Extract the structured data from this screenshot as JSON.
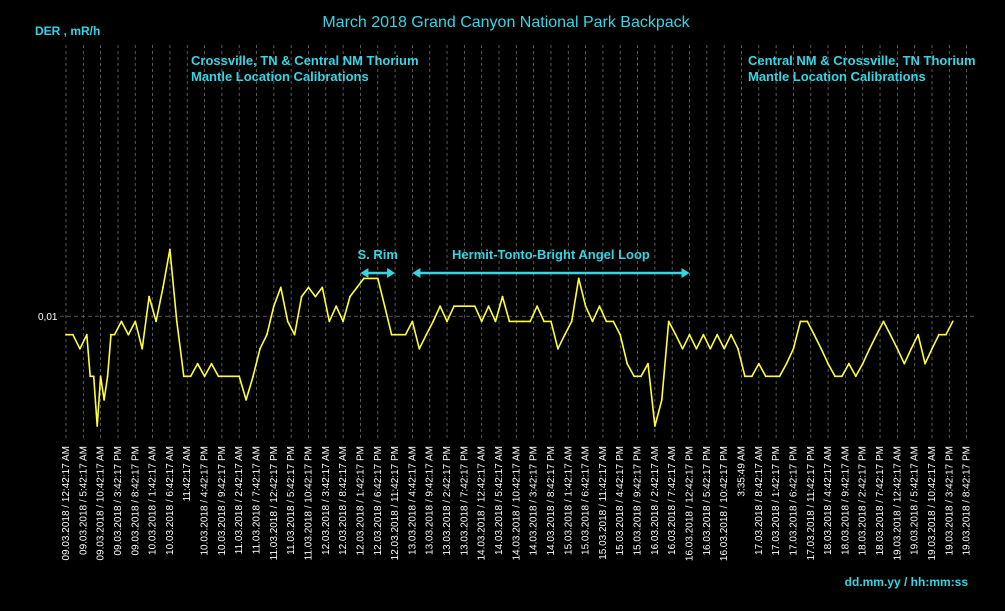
{
  "chart_data": {
    "type": "line",
    "title": "March 2018 Grand Canyon National Park Backpack",
    "ylabel": "DER , mR/h",
    "xlabel": "dd.mm.yy / hh:mm:ss",
    "y_scale": "log",
    "y_tick_labels": [
      {
        "value": 0.01,
        "label": "0,01"
      }
    ],
    "ylim": [
      0.0062,
      0.029
    ],
    "grid": "vertical dashed gridlines at each x tick; horizontal dashed line at 0,01",
    "colors": {
      "background": "#000000",
      "line": "#FFFF33",
      "text": "#33D6E6",
      "ticks": "#FFFFFF",
      "grid": "#6E6E6E"
    },
    "x_tick_labels": [
      "09.03.2018 / 12:42:17 AM",
      "09.03.2018 / 5:42:17 AM",
      "09.03.2018 / 10:42:17 AM",
      "09.03.2018 / 3:42:17 PM",
      "09.03.2018 / 8:42:17 PM",
      "10.03.2018 / 1:42:17 AM",
      "10.03.2018 / 6:42:17 AM",
      "11:42:17 AM",
      "10.03.2018 / 4:42:17 PM",
      "10.03.2018 / 9:42:17 PM",
      "11.03.2018 / 2:42:17 AM",
      "11.03.2018 / 7:42:17 AM",
      "11.03.2018 / 12:42:17 PM",
      "11.03.2018 / 5:42:17 PM",
      "11.03.2018 / 10:42:17 PM",
      "12.03.2018 / 3:42:17 AM",
      "12.03.2018 / 8:42:17 AM",
      "12.03.2018 / 1:42:17 PM",
      "12.03.2018 / 6:42:17 PM",
      "12.03.2018 / 11:42:17 PM",
      "13.03.2018 / 4:42:17 AM",
      "13.03.2018 / 9:42:17 AM",
      "13.03.2018 / 2:42:17 PM",
      "13.03.2018 / 7:42:17 PM",
      "14.03.2018 / 12:42:17 AM",
      "14.03.2018 / 5:42:17 AM",
      "14.03.2018 / 10:42:17 AM",
      "14.03.2018 / 3:42:17 PM",
      "14.03.2018 / 8:42:17 PM",
      "15.03.2018 / 1:42:17 AM",
      "15.03.2018 / 6:42:17 AM",
      "15.03.2018 / 11:42:17 AM",
      "15.03.2018 / 4:42:17 PM",
      "15.03.2018 / 9:42:17 PM",
      "16.03.2018 / 2:42:17 AM",
      "16.03.2018 / 7:42:17 AM",
      "16.03.2018 / 12:42:17 PM",
      "16.03.2018 / 5:42:17 PM",
      "16.03.2018 / 10:42:17 PM",
      "3:35:49 AM",
      "17.03.2018 / 8:42:17 AM",
      "17.03.2018 / 1:42:17 PM",
      "17.03.2018 / 6:42:17 PM",
      "17.03.2018 / 11:42:17 PM",
      "18.03.2018 / 4:42:17 AM",
      "18.03.2018 / 9:42:17 AM",
      "18.03.2018 / 2:42:17 PM",
      "18.03.2018 / 7:42:17 PM",
      "19.03.2018 / 12:42:17 AM",
      "19.03.2018 / 5:42:17 AM",
      "19.03.2018 / 10:42:17 AM",
      "19.03.2018 / 3:42:17 PM",
      "19.03.2018 / 8:42:17 PM"
    ],
    "annotations": [
      {
        "lines": [
          "Crossville, TN & Central NM Thorium",
          "Mantle Location Calibrations"
        ],
        "anchor": "upper-left"
      },
      {
        "lines": [
          "Central NM & Crossville, TN Thorium",
          "Mantle Location Calibrations"
        ],
        "anchor": "upper-right"
      },
      {
        "label": "S. Rim",
        "span": [
          "12.03.2018 / 1:42:17 PM",
          "12.03.2018 / 11:42:17 PM"
        ]
      },
      {
        "label": "Hermit-Tonto-Bright Angel Loop",
        "span": [
          "13.03.2018 / 4:42:17 AM",
          "16.03.2018 / 12:42:17 PM"
        ]
      }
    ],
    "series": [
      {
        "note": "values in mR/h; x in hours after 09.03.2018 / 12:42:17 AM",
        "x": [
          0,
          2,
          4,
          6,
          7,
          8,
          9,
          10,
          11,
          12,
          13,
          14,
          16,
          18,
          20,
          22,
          24,
          26,
          28,
          30,
          32,
          34,
          36,
          38,
          40,
          42,
          44,
          45,
          46,
          47,
          48,
          50,
          52,
          54,
          56,
          58,
          60,
          62,
          64,
          66,
          68,
          70,
          72,
          74,
          76,
          78,
          80,
          82,
          84,
          86,
          88,
          90,
          92,
          94,
          96,
          98,
          100,
          102,
          104,
          106,
          108,
          110,
          112,
          114,
          116,
          118,
          120,
          122,
          124,
          126,
          128,
          130,
          132,
          134,
          136,
          138,
          140,
          142,
          144,
          146,
          148,
          150,
          152,
          154,
          156,
          158,
          160,
          162,
          164,
          166,
          168,
          170,
          172,
          174,
          176,
          178,
          180,
          182,
          184,
          186,
          188,
          190,
          192,
          194,
          196,
          198,
          200,
          202,
          204,
          206,
          208,
          210,
          212,
          214,
          216,
          218,
          220,
          222,
          224,
          226,
          228,
          230,
          232,
          234,
          236,
          238,
          240,
          242,
          244,
          246,
          248,
          250,
          252,
          254,
          256
        ],
        "y": [
          0.0093,
          0.0093,
          0.0088,
          0.0093,
          0.0079,
          0.0079,
          0.0065,
          0.0079,
          0.0072,
          0.0079,
          0.0093,
          0.0093,
          0.0098,
          0.0093,
          0.0098,
          0.0088,
          0.0108,
          0.0098,
          0.0112,
          0.013,
          0.0098,
          0.0079,
          0.0079,
          0.0083,
          0.0079,
          0.0083,
          0.0079,
          0.0079,
          0.0079,
          0.0079,
          0.0079,
          0.0079,
          0.0072,
          0.0079,
          0.0088,
          0.0093,
          0.0104,
          0.0112,
          0.0098,
          0.0093,
          0.0108,
          0.0112,
          0.0108,
          0.0112,
          0.0098,
          0.0104,
          0.0098,
          0.0108,
          0.0112,
          0.0116,
          0.0116,
          0.0116,
          0.0104,
          0.0093,
          0.0093,
          0.0093,
          0.0098,
          0.0088,
          0.0093,
          0.0098,
          0.0104,
          0.0098,
          0.0104,
          0.0104,
          0.0104,
          0.0104,
          0.0098,
          0.0104,
          0.0098,
          0.0108,
          0.0098,
          0.0098,
          0.0098,
          0.0098,
          0.0104,
          0.0098,
          0.0098,
          0.0088,
          0.0093,
          0.0098,
          0.0116,
          0.0104,
          0.0098,
          0.0104,
          0.0098,
          0.0098,
          0.0093,
          0.0083,
          0.0079,
          0.0079,
          0.0083,
          0.0065,
          0.0072,
          0.0098,
          0.0093,
          0.0088,
          0.0093,
          0.0088,
          0.0093,
          0.0088,
          0.0093,
          0.0088,
          0.0093,
          0.0088,
          0.0079,
          0.0079,
          0.0083,
          0.0079,
          0.0079,
          0.0079,
          0.0083,
          0.0088,
          0.0098,
          0.0098,
          0.0093,
          0.0088,
          0.0083,
          0.0079,
          0.0079,
          0.0083,
          0.0079,
          0.0083,
          0.0088,
          0.0093,
          0.0098,
          0.0093,
          0.0088,
          0.0083,
          0.0088,
          0.0093,
          0.0083,
          0.0088,
          0.0093,
          0.0093,
          0.0098
        ]
      }
    ]
  }
}
